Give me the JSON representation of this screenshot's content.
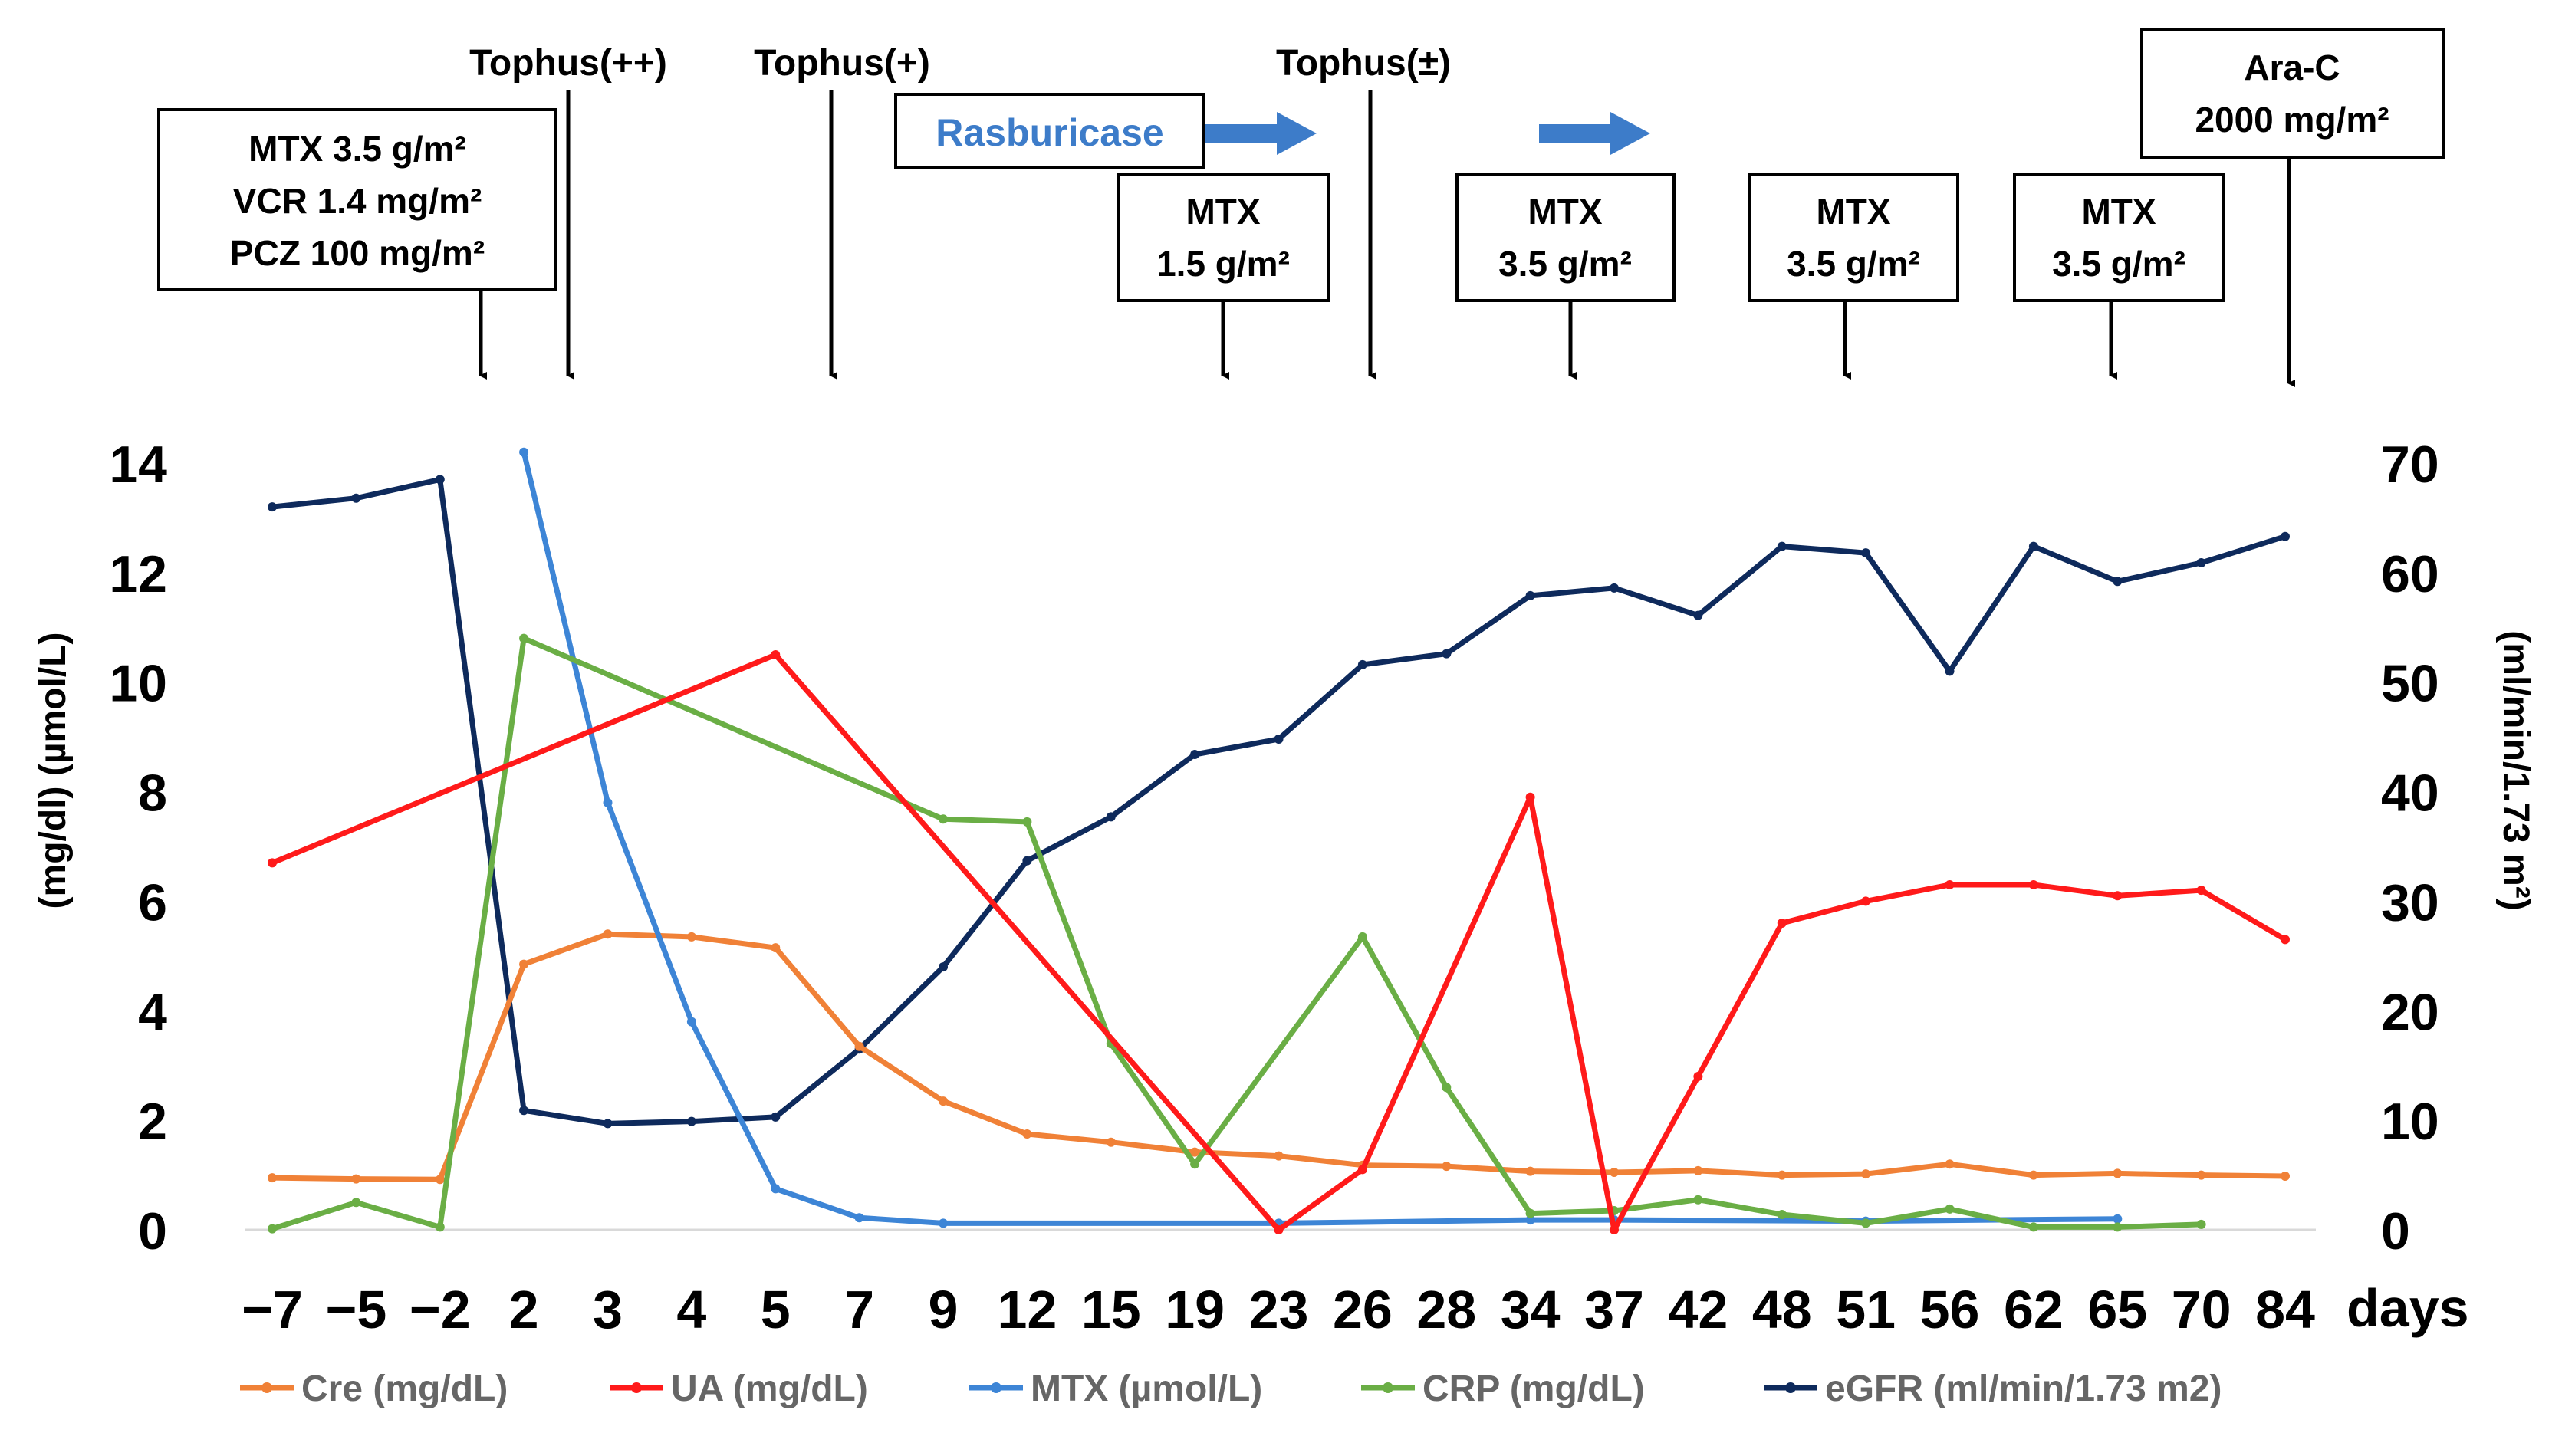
{
  "chart_data": {
    "type": "line",
    "categories": [
      "−7",
      "−5",
      "−2",
      "2",
      "3",
      "4",
      "5",
      "7",
      "9",
      "12",
      "15",
      "19",
      "23",
      "26",
      "28",
      "34",
      "37",
      "42",
      "48",
      "51",
      "56",
      "62",
      "65",
      "70",
      "84"
    ],
    "x_axis_unit_label": "days",
    "y_left_label": "(mg/dl) (µmol/L)",
    "y_left_ticks": [
      0,
      2,
      4,
      6,
      8,
      10,
      12,
      14
    ],
    "y_left_range": [
      0,
      14
    ],
    "y_right_label": "(ml/min/1.73 m²)",
    "y_right_ticks": [
      0,
      10,
      20,
      30,
      40,
      50,
      60,
      70
    ],
    "y_right_range": [
      0,
      70
    ],
    "series": [
      {
        "name": "Cre (mg/dL)",
        "color": "#F08137",
        "axis": "left",
        "values": [
          0.95,
          0.93,
          0.92,
          4.85,
          5.4,
          5.35,
          5.15,
          3.35,
          2.35,
          1.75,
          1.6,
          1.42,
          1.35,
          1.18,
          1.16,
          1.07,
          1.05,
          1.08,
          1.0,
          1.02,
          1.2,
          1.0,
          1.03,
          1.0,
          0.98
        ]
      },
      {
        "name": "UA (mg/dL)",
        "color": "#FF1A1A",
        "axis": "left",
        "values": [
          6.7,
          null,
          null,
          null,
          null,
          null,
          10.5,
          null,
          null,
          null,
          null,
          null,
          0.0,
          1.1,
          null,
          7.9,
          0.0,
          2.8,
          5.6,
          6.0,
          6.3,
          6.3,
          6.1,
          6.2,
          5.3
        ]
      },
      {
        "name": "MTX (µmol/L)",
        "color": "#3D85D6",
        "axis": "left",
        "values": [
          null,
          null,
          null,
          14.2,
          7.8,
          3.8,
          0.75,
          0.22,
          0.12,
          null,
          null,
          null,
          0.12,
          null,
          null,
          0.18,
          0.18,
          null,
          null,
          0.16,
          null,
          null,
          0.2,
          null,
          null
        ]
      },
      {
        "name": "CRP (mg/dL)",
        "color": "#6AAE45",
        "axis": "left",
        "values": [
          0.02,
          0.5,
          0.05,
          10.8,
          null,
          null,
          null,
          null,
          7.5,
          7.45,
          3.4,
          1.2,
          null,
          5.35,
          2.6,
          0.3,
          0.35,
          0.55,
          0.28,
          0.12,
          0.38,
          0.05,
          0.05,
          0.1,
          null
        ]
      },
      {
        "name": "eGFR (ml/min/1.73 m2)",
        "color": "#0E2A5C",
        "axis": "right",
        "values": [
          66.0,
          66.8,
          68.5,
          10.9,
          9.7,
          9.9,
          10.3,
          16.5,
          24.0,
          33.7,
          37.7,
          43.4,
          44.8,
          51.6,
          52.6,
          57.9,
          58.6,
          56.1,
          62.4,
          61.8,
          51.0,
          62.4,
          59.2,
          60.9,
          63.3
        ]
      }
    ],
    "annotations": {
      "tophus_labels": [
        "Tophus(++)",
        "Tophus(+)",
        "Tophus(±)"
      ],
      "rasburicase_label": "Rasburicase",
      "boxes": [
        {
          "lines": [
            "MTX 3.5 g/m²",
            "VCR 1.4 mg/m²",
            "PCZ 100 mg/m²"
          ]
        },
        {
          "lines": [
            "MTX",
            "1.5 g/m²"
          ]
        },
        {
          "lines": [
            "MTX",
            "3.5 g/m²"
          ]
        },
        {
          "lines": [
            "MTX",
            "3.5 g/m²"
          ]
        },
        {
          "lines": [
            "MTX",
            "3.5 g/m²"
          ]
        },
        {
          "lines": [
            "Ara-C",
            "2000 mg/m²"
          ]
        }
      ]
    }
  }
}
